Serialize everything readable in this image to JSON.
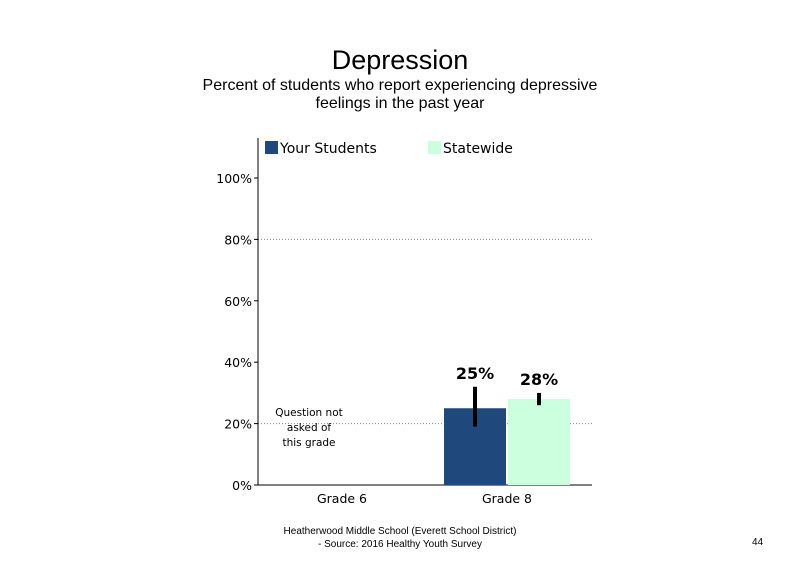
{
  "chart_data": {
    "type": "bar",
    "title": "Depression",
    "subtitle": "Percent of students who report experiencing depressive feelings in the past year",
    "categories": [
      "Grade 6",
      "Grade 8"
    ],
    "series": [
      {
        "name": "Your Students",
        "color": "#1f497d",
        "values": [
          null,
          25
        ],
        "labels": [
          "",
          "25%"
        ],
        "error": [
          null,
          [
            19,
            32
          ]
        ]
      },
      {
        "name": "Statewide",
        "color": "#ccffdd",
        "values": [
          null,
          28
        ],
        "labels": [
          "",
          "28%"
        ],
        "error": [
          null,
          [
            26,
            30
          ]
        ]
      }
    ],
    "ylim": [
      0,
      100
    ],
    "yticks": [
      0,
      20,
      40,
      60,
      80,
      100
    ],
    "ytick_labels": [
      "0%",
      "20%",
      "40%",
      "60%",
      "80%",
      "100%"
    ],
    "xlabel": "",
    "ylabel": "",
    "grid": "dotted horizontal at 20% and 80%",
    "legend": "top",
    "annotations": [
      "Question not",
      "asked of",
      "this grade"
    ]
  },
  "footer": {
    "line1": "Heatherwood Middle School (Everett School District)",
    "line2": "- Source: 2016 Healthy Youth Survey"
  },
  "page_number": "44"
}
